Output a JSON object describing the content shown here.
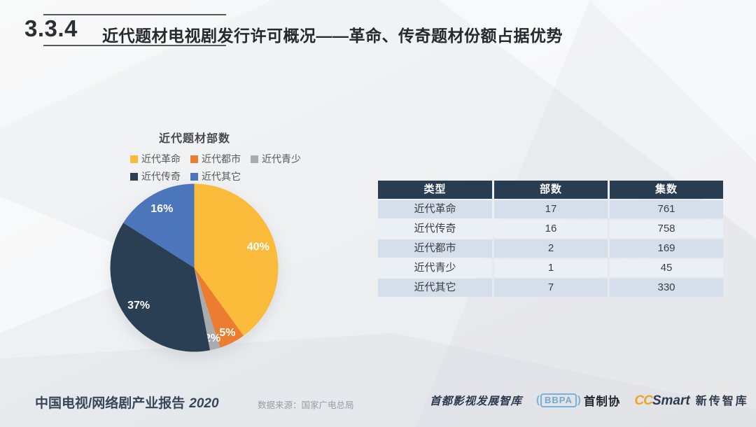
{
  "header": {
    "section_number": "3.3.4",
    "title": "近代题材电视剧发行许可概况——革命、传奇题材份额占据优势"
  },
  "chart_data": {
    "type": "pie",
    "title": "近代题材部数",
    "direction": "clockwise",
    "start_angle": 0,
    "legend_position": "top-left, two rows",
    "series": [
      {
        "name": "近代革命",
        "pct": 40,
        "color": "#FBBB3A"
      },
      {
        "name": "近代都市",
        "pct": 5,
        "color": "#EC7C30"
      },
      {
        "name": "近代青少",
        "pct": 2,
        "color": "#A9ACAF"
      },
      {
        "name": "近代传奇",
        "pct": 37,
        "color": "#2A3E54"
      },
      {
        "name": "近代其它",
        "pct": 16,
        "color": "#4C76BC"
      }
    ],
    "legend_rows": [
      [
        0,
        1,
        2
      ],
      [
        3,
        4
      ]
    ],
    "labels": [
      "40%",
      "5%",
      "2%",
      "37%",
      "16%"
    ]
  },
  "table": {
    "headers": [
      "类型",
      "部数",
      "集数"
    ],
    "rows": [
      [
        "近代革命",
        "17",
        "761"
      ],
      [
        "近代传奇",
        "16",
        "758"
      ],
      [
        "近代都市",
        "2",
        "169"
      ],
      [
        "近代青少",
        "1",
        "45"
      ],
      [
        "近代其它",
        "7",
        "330"
      ]
    ]
  },
  "footer": {
    "report_title": "中国电视/网络剧产业报告",
    "report_year": "2020",
    "source": "数据来源：国家广电总局",
    "partners": {
      "think_tank": "首都影视发展智库",
      "bbpa_badge": "BBPA",
      "bbpa_name": "首制协",
      "ccsmart_cc": "CC",
      "ccsmart_smart": "Smart",
      "ccsmart_name": "新传智库"
    }
  },
  "colors": {
    "table_header_bg": "#293D52",
    "table_row_odd": "#D5DFEB",
    "table_row_even": "#EBF0F6",
    "accent_yellow": "#EFA32B",
    "rule_line": "#55585C",
    "background": "#EFF1F3"
  }
}
